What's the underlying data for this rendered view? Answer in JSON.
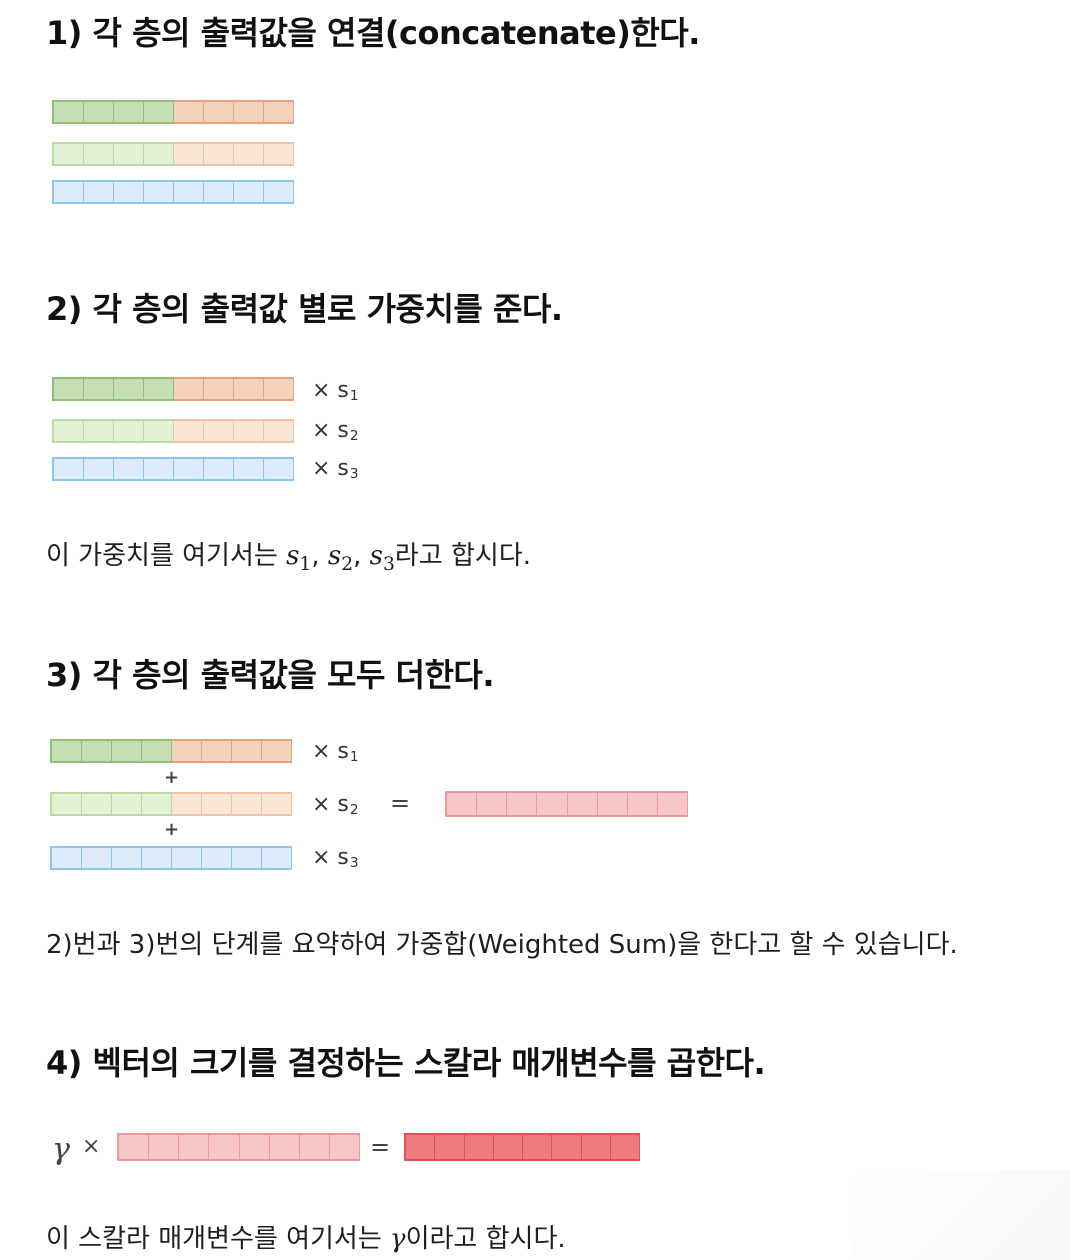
{
  "sections": {
    "s1": {
      "heading": "1) 각 층의 출력값을 연결(concatenate)한다."
    },
    "s2": {
      "heading": "2) 각 층의 출력값 별로 가중치를 준다.",
      "label_prefix": "× s",
      "subs": [
        "1",
        "2",
        "3"
      ],
      "note_prefix": "이 가중치를 여기서는 ",
      "note_math_var": "s",
      "note_suffix": "라고 합시다."
    },
    "s3": {
      "heading": "3) 각 층의 출력값을 모두 더한다.",
      "plus": "+",
      "equals": "=",
      "note": "2)번과 3)번의 단계를 요약하여 가중합(Weighted Sum)을 한다고 할 수 있습니다."
    },
    "s4": {
      "heading": "4) 벡터의 크기를 결정하는 스칼라 매개변수를 곱한다.",
      "gamma": "γ",
      "times": "×",
      "equals": "=",
      "note_prefix": "이 스칼라 매개변수를 여기서는 ",
      "note_math": "γ",
      "note_suffix": "이라고 합시다."
    }
  },
  "colors": {
    "dark_green_fill": "#c5deb3",
    "dark_green_border": "#8fbf74",
    "light_green_fill": "#e3f1d6",
    "light_green_border": "#b7dba0",
    "blue_fill": "#dcecfa",
    "blue_border": "#8cc6ec",
    "orange_fill": "#f5d2bb",
    "orange_border": "#e6a27f",
    "light_orange_fill": "#fae5d6",
    "light_orange_border": "#f0c2a4",
    "pink_fill": "#f6c6c8",
    "pink_border": "#ec979b",
    "red_fill": "#ef7b7e",
    "red_border": "#d9534f"
  }
}
